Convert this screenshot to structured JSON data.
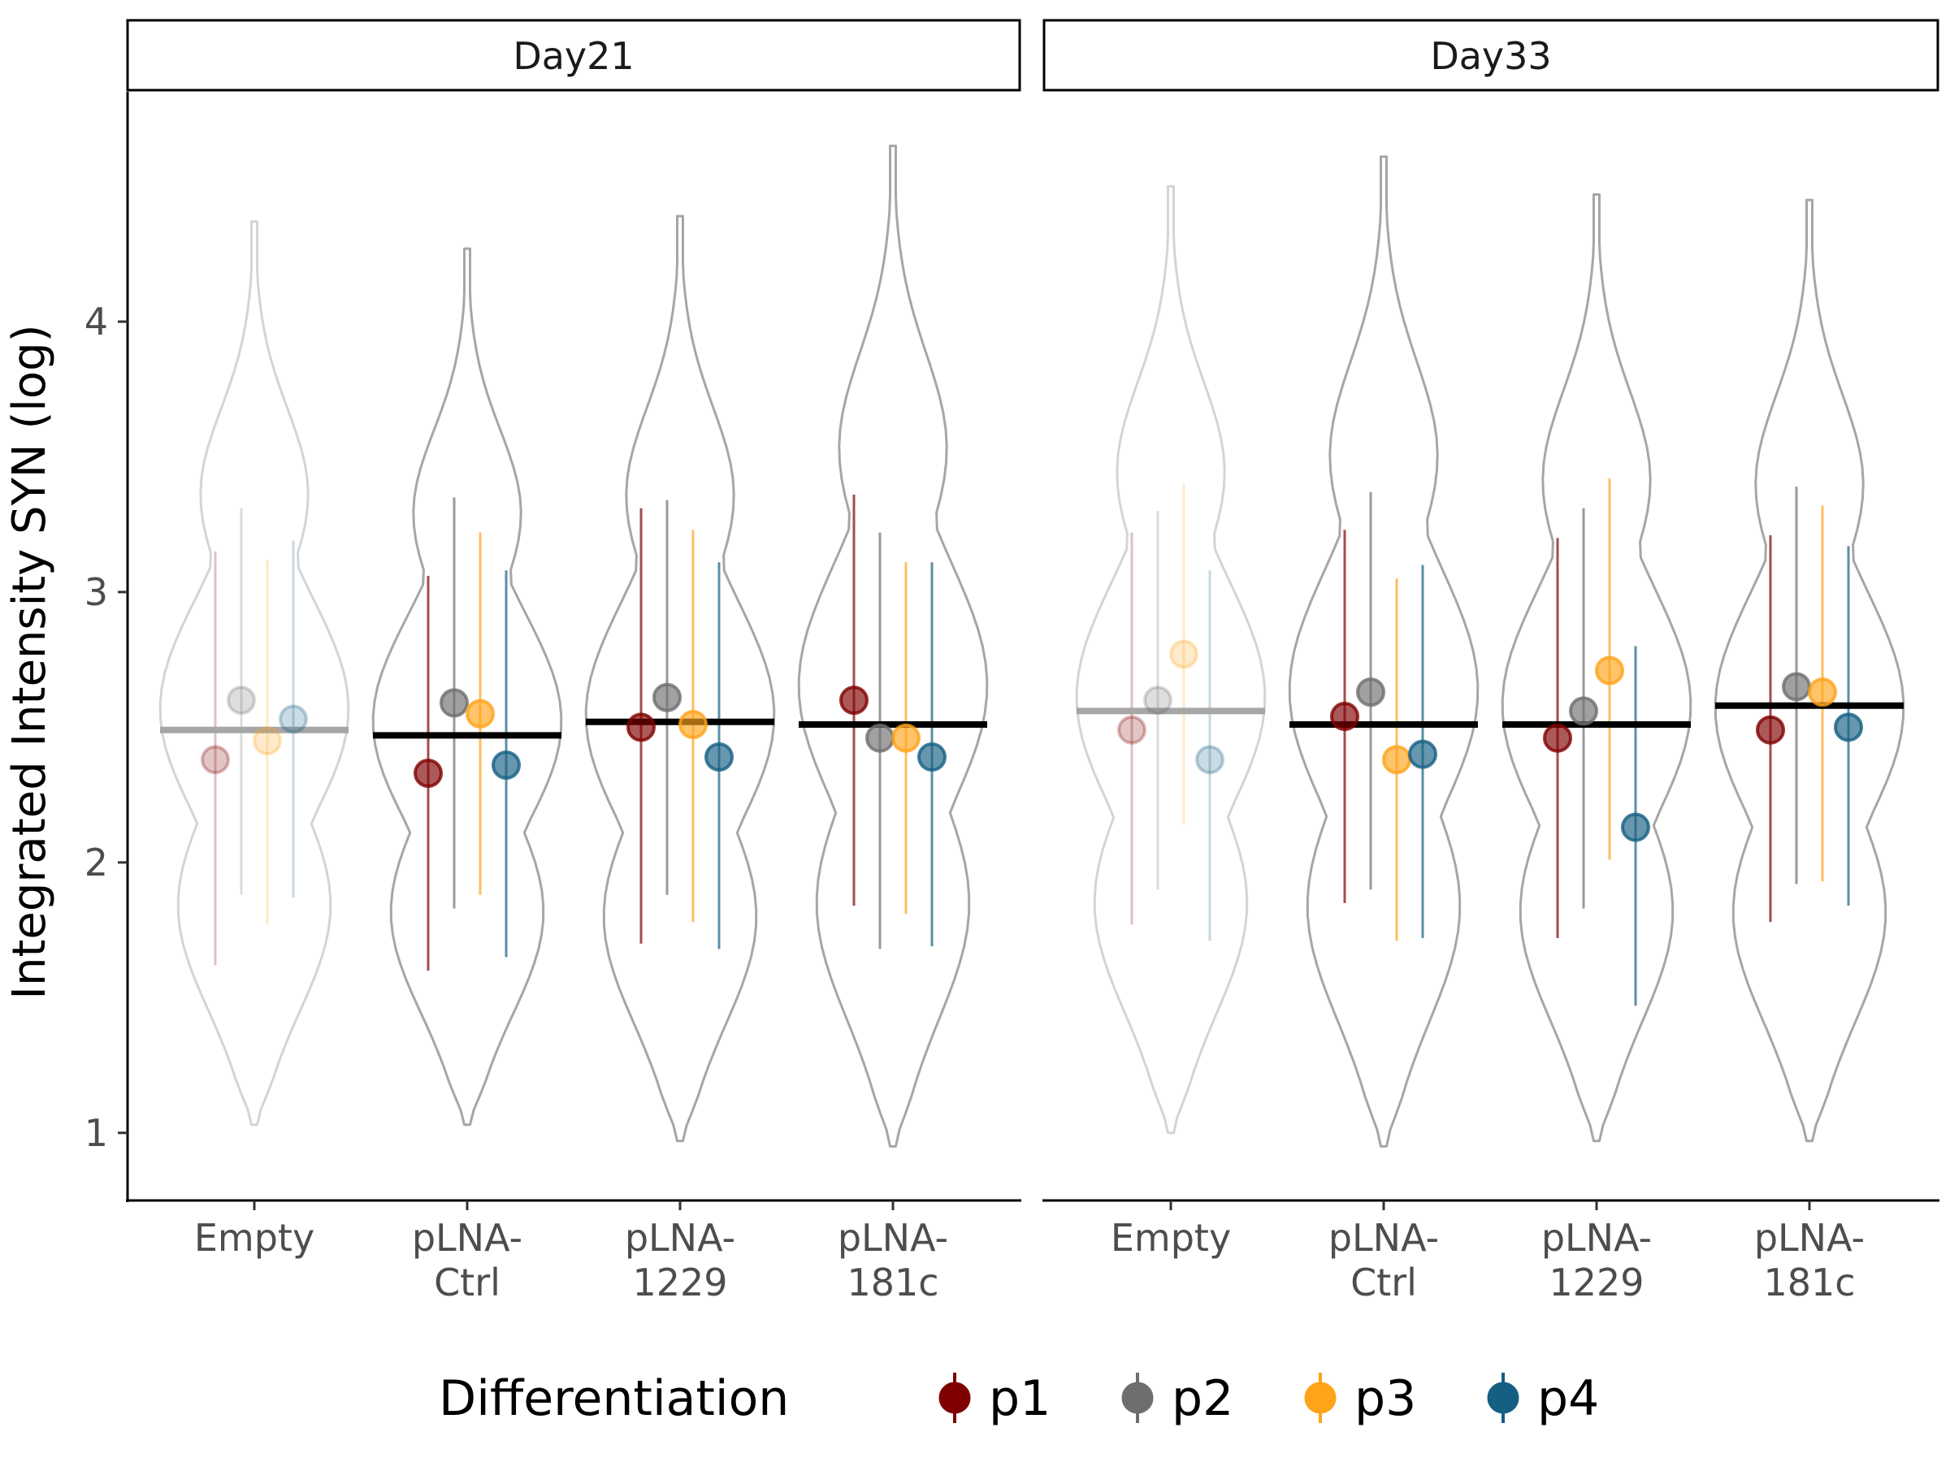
{
  "chart_data": {
    "type": "violin",
    "ylabel": "Integrated Intensity SYN (log)",
    "xlabel": "",
    "ylim": [
      0.75,
      4.85
    ],
    "yticks": [
      1,
      2,
      3,
      4
    ],
    "yticklabels": [
      "1",
      "2",
      "3",
      "4"
    ],
    "grid": false,
    "legend_title": "Differentiation",
    "legend_position": "bottom",
    "groups": [
      {
        "name": "p1",
        "color": "#7f0000"
      },
      {
        "name": "p2",
        "color": "#6e6e6e"
      },
      {
        "name": "p3",
        "color": "#ffa31a"
      },
      {
        "name": "p4",
        "color": "#155f83"
      }
    ],
    "categories": [
      {
        "label_lines": [
          "Empty"
        ]
      },
      {
        "label_lines": [
          "pLNA-",
          "Ctrl"
        ]
      },
      {
        "label_lines": [
          "pLNA-",
          "1229"
        ]
      },
      {
        "label_lines": [
          "pLNA-",
          "181c"
        ]
      }
    ],
    "panels": [
      {
        "strip": "Day21",
        "items": [
          {
            "faded": true,
            "ymin": 1.03,
            "ymax": 4.37,
            "median": 2.49,
            "points": [
              {
                "y": 2.38,
                "lo": 1.62,
                "hi": 3.15
              },
              {
                "y": 2.6,
                "lo": 1.88,
                "hi": 3.31
              },
              {
                "y": 2.45,
                "lo": 1.77,
                "hi": 3.12
              },
              {
                "y": 2.53,
                "lo": 1.87,
                "hi": 3.19
              }
            ]
          },
          {
            "faded": false,
            "ymin": 1.03,
            "ymax": 4.27,
            "median": 2.47,
            "points": [
              {
                "y": 2.33,
                "lo": 1.6,
                "hi": 3.06
              },
              {
                "y": 2.59,
                "lo": 1.83,
                "hi": 3.35
              },
              {
                "y": 2.55,
                "lo": 1.88,
                "hi": 3.22
              },
              {
                "y": 2.36,
                "lo": 1.65,
                "hi": 3.08
              }
            ]
          },
          {
            "faded": false,
            "ymin": 0.97,
            "ymax": 4.39,
            "median": 2.52,
            "points": [
              {
                "y": 2.5,
                "lo": 1.7,
                "hi": 3.31
              },
              {
                "y": 2.61,
                "lo": 1.88,
                "hi": 3.34
              },
              {
                "y": 2.51,
                "lo": 1.78,
                "hi": 3.23
              },
              {
                "y": 2.39,
                "lo": 1.68,
                "hi": 3.11
              }
            ]
          },
          {
            "faded": false,
            "ymin": 0.95,
            "ymax": 4.65,
            "median": 2.51,
            "points": [
              {
                "y": 2.6,
                "lo": 1.84,
                "hi": 3.36
              },
              {
                "y": 2.46,
                "lo": 1.68,
                "hi": 3.22
              },
              {
                "y": 2.46,
                "lo": 1.81,
                "hi": 3.11
              },
              {
                "y": 2.39,
                "lo": 1.69,
                "hi": 3.11
              }
            ]
          }
        ]
      },
      {
        "strip": "Day33",
        "items": [
          {
            "faded": true,
            "ymin": 1.0,
            "ymax": 4.5,
            "median": 2.56,
            "points": [
              {
                "y": 2.49,
                "lo": 1.77,
                "hi": 3.22
              },
              {
                "y": 2.6,
                "lo": 1.9,
                "hi": 3.3
              },
              {
                "y": 2.77,
                "lo": 2.14,
                "hi": 3.4
              },
              {
                "y": 2.38,
                "lo": 1.71,
                "hi": 3.08
              }
            ]
          },
          {
            "faded": false,
            "ymin": 0.95,
            "ymax": 4.61,
            "median": 2.51,
            "points": [
              {
                "y": 2.54,
                "lo": 1.85,
                "hi": 3.23
              },
              {
                "y": 2.63,
                "lo": 1.9,
                "hi": 3.37
              },
              {
                "y": 2.38,
                "lo": 1.71,
                "hi": 3.05
              },
              {
                "y": 2.4,
                "lo": 1.72,
                "hi": 3.1
              }
            ]
          },
          {
            "faded": false,
            "ymin": 0.97,
            "ymax": 4.47,
            "median": 2.51,
            "points": [
              {
                "y": 2.46,
                "lo": 1.72,
                "hi": 3.2
              },
              {
                "y": 2.56,
                "lo": 1.83,
                "hi": 3.31
              },
              {
                "y": 2.71,
                "lo": 2.01,
                "hi": 3.42
              },
              {
                "y": 2.13,
                "lo": 1.47,
                "hi": 2.8
              }
            ]
          },
          {
            "faded": false,
            "ymin": 0.97,
            "ymax": 4.45,
            "median": 2.58,
            "points": [
              {
                "y": 2.49,
                "lo": 1.78,
                "hi": 3.21
              },
              {
                "y": 2.65,
                "lo": 1.92,
                "hi": 3.39
              },
              {
                "y": 2.63,
                "lo": 1.93,
                "hi": 3.32
              },
              {
                "y": 2.5,
                "lo": 1.84,
                "hi": 3.17
              }
            ]
          }
        ]
      }
    ]
  }
}
